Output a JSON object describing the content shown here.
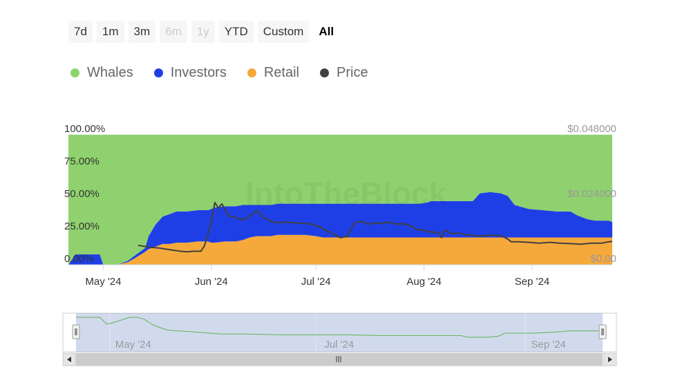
{
  "range_selector": {
    "buttons": [
      {
        "label": "7d",
        "state": "normal"
      },
      {
        "label": "1m",
        "state": "normal"
      },
      {
        "label": "3m",
        "state": "normal"
      },
      {
        "label": "6m",
        "state": "disabled"
      },
      {
        "label": "1y",
        "state": "disabled"
      },
      {
        "label": "YTD",
        "state": "normal"
      },
      {
        "label": "Custom",
        "state": "normal"
      },
      {
        "label": "All",
        "state": "active"
      }
    ]
  },
  "legend": [
    {
      "label": "Whales",
      "color": "#8fd16e"
    },
    {
      "label": "Investors",
      "color": "#1f3fe6"
    },
    {
      "label": "Retail",
      "color": "#f6a93b"
    },
    {
      "label": "Price",
      "color": "#404040"
    }
  ],
  "watermark": "IntoTheBlock",
  "navigator": {
    "scroll_thumb_icon": "grip-lines-icon"
  },
  "chart_data": {
    "type": "area",
    "stacking": "percent",
    "x_axis": {
      "type": "date",
      "ticks": [
        "May '24",
        "Jun '24",
        "Jul '24",
        "Aug '24",
        "Sep '24"
      ]
    },
    "y_left": {
      "range": [
        0,
        100
      ],
      "ticks": [
        "0.00%",
        "25.00%",
        "50.00%",
        "75.00%",
        "100.00%"
      ]
    },
    "y_right": {
      "range": [
        0,
        0.048
      ],
      "ticks": [
        "$0.00",
        "$0.024000",
        "$0.048000"
      ]
    },
    "grid": true,
    "legend_position": "top-left",
    "navigator_ticks": [
      "May '24",
      "Jul '24",
      "Sep '24"
    ],
    "x": [
      "2024-04-21",
      "2024-04-23",
      "2024-04-24",
      "2024-04-30",
      "2024-05-01",
      "2024-05-05",
      "2024-05-08",
      "2024-05-10",
      "2024-05-13",
      "2024-05-14",
      "2024-05-16",
      "2024-05-18",
      "2024-05-20",
      "2024-05-22",
      "2024-05-25",
      "2024-05-28",
      "2024-05-31",
      "2024-06-01",
      "2024-06-02",
      "2024-06-05",
      "2024-06-08",
      "2024-06-10",
      "2024-06-12",
      "2024-06-14",
      "2024-06-15",
      "2024-06-18",
      "2024-06-20",
      "2024-06-22",
      "2024-06-25",
      "2024-06-28",
      "2024-07-01",
      "2024-07-03",
      "2024-07-05",
      "2024-07-07",
      "2024-07-10",
      "2024-07-13",
      "2024-07-16",
      "2024-07-19",
      "2024-07-22",
      "2024-07-25",
      "2024-07-28",
      "2024-07-31",
      "2024-08-02",
      "2024-08-03",
      "2024-08-05",
      "2024-08-08",
      "2024-08-11",
      "2024-08-13",
      "2024-08-15",
      "2024-08-17",
      "2024-08-20",
      "2024-08-23",
      "2024-08-25",
      "2024-08-27",
      "2024-08-31",
      "2024-09-04",
      "2024-09-08",
      "2024-09-11",
      "2024-09-12",
      "2024-09-14",
      "2024-09-17",
      "2024-09-19",
      "2024-09-21",
      "2024-09-23",
      "2024-09-24"
    ],
    "series": [
      {
        "name": "Retail",
        "values": [
          0,
          0,
          0,
          0,
          0,
          0,
          2,
          5,
          10,
          12,
          14,
          16,
          16,
          17,
          17,
          18,
          18,
          17,
          17,
          18,
          18,
          19,
          21,
          22,
          22,
          22,
          23,
          23,
          23,
          23,
          22,
          21,
          21,
          21,
          21,
          21,
          21,
          21,
          21,
          21,
          21,
          21,
          21,
          21,
          21,
          21,
          21,
          21,
          21,
          21,
          21,
          21,
          21,
          21,
          21,
          21,
          21,
          21,
          21,
          21,
          21,
          21,
          21,
          21,
          21
        ]
      },
      {
        "name": "Investors",
        "values": [
          0,
          8,
          8,
          8,
          0,
          0,
          1,
          2,
          3,
          10,
          17,
          21,
          23,
          24,
          24,
          24,
          24,
          26,
          27,
          27,
          27,
          27,
          25,
          24,
          24,
          24,
          24,
          24,
          24,
          24,
          25,
          26,
          26,
          26,
          26,
          26,
          26,
          26,
          26,
          26,
          26,
          26,
          27,
          28,
          28,
          28,
          28,
          28,
          28,
          34,
          35,
          34,
          32,
          25,
          22,
          21,
          20,
          20,
          20,
          17,
          14,
          13,
          13,
          13,
          12
        ]
      },
      {
        "name": "Whales",
        "values": [
          100,
          92,
          92,
          92,
          100,
          100,
          97,
          93,
          87,
          78,
          69,
          63,
          61,
          59,
          59,
          58,
          58,
          57,
          56,
          55,
          55,
          54,
          54,
          54,
          54,
          54,
          53,
          53,
          53,
          53,
          53,
          53,
          53,
          53,
          53,
          53,
          53,
          53,
          53,
          53,
          53,
          53,
          52,
          51,
          51,
          51,
          51,
          51,
          51,
          45,
          44,
          45,
          47,
          54,
          57,
          58,
          59,
          59,
          59,
          62,
          65,
          66,
          66,
          66,
          67
        ]
      }
    ],
    "price_series": {
      "name": "Price",
      "x": [
        "2024-05-11",
        "2024-05-14",
        "2024-05-17",
        "2024-05-20",
        "2024-05-23",
        "2024-05-25",
        "2024-05-27",
        "2024-05-29",
        "2024-05-30",
        "2024-05-31",
        "2024-06-01",
        "2024-06-02",
        "2024-06-03",
        "2024-06-04",
        "2024-06-06",
        "2024-06-08",
        "2024-06-10",
        "2024-06-12",
        "2024-06-14",
        "2024-06-16",
        "2024-06-18",
        "2024-06-20",
        "2024-06-22",
        "2024-06-25",
        "2024-06-28",
        "2024-06-30",
        "2024-07-02",
        "2024-07-05",
        "2024-07-08",
        "2024-07-10",
        "2024-07-12",
        "2024-07-14",
        "2024-07-16",
        "2024-07-18",
        "2024-07-20",
        "2024-07-22",
        "2024-07-24",
        "2024-07-26",
        "2024-07-28",
        "2024-07-30",
        "2024-08-01",
        "2024-08-03",
        "2024-08-05",
        "2024-08-06",
        "2024-08-07",
        "2024-08-09",
        "2024-08-11",
        "2024-08-13",
        "2024-08-15",
        "2024-08-17",
        "2024-08-20",
        "2024-08-23",
        "2024-08-25",
        "2024-08-26",
        "2024-08-28",
        "2024-08-31",
        "2024-09-03",
        "2024-09-06",
        "2024-09-09",
        "2024-09-12",
        "2024-09-15",
        "2024-09-18",
        "2024-09-21",
        "2024-09-23",
        "2024-09-24"
      ],
      "values": [
        0.0072,
        0.0065,
        0.0062,
        0.0056,
        0.005,
        0.0048,
        0.005,
        0.005,
        0.007,
        0.011,
        0.016,
        0.023,
        0.021,
        0.0225,
        0.018,
        0.0175,
        0.0165,
        0.018,
        0.02,
        0.0175,
        0.016,
        0.0155,
        0.0158,
        0.0155,
        0.0152,
        0.015,
        0.014,
        0.012,
        0.01,
        0.0105,
        0.0155,
        0.016,
        0.015,
        0.0155,
        0.0152,
        0.0158,
        0.015,
        0.0152,
        0.0145,
        0.013,
        0.0128,
        0.012,
        0.012,
        0.01,
        0.0128,
        0.0115,
        0.0118,
        0.011,
        0.011,
        0.0105,
        0.011,
        0.0108,
        0.0095,
        0.0085,
        0.0085,
        0.0083,
        0.008,
        0.0083,
        0.008,
        0.0078,
        0.0076,
        0.008,
        0.008,
        0.0085,
        0.0086
      ]
    },
    "navigator_series": {
      "name": "Retail",
      "x": [
        "2024-04-21",
        "2024-04-28",
        "2024-04-30",
        "2024-05-01",
        "2024-05-07",
        "2024-05-09",
        "2024-05-11",
        "2024-05-14",
        "2024-05-18",
        "2024-05-21",
        "2024-05-25",
        "2024-05-31",
        "2024-06-03",
        "2024-06-10",
        "2024-06-20",
        "2024-07-01",
        "2024-07-10",
        "2024-07-20",
        "2024-08-01",
        "2024-08-13",
        "2024-08-15",
        "2024-08-21",
        "2024-08-24",
        "2024-08-26",
        "2024-09-03",
        "2024-09-12",
        "2024-09-14",
        "2024-09-24"
      ],
      "values": [
        0,
        0,
        8,
        8,
        0,
        0,
        2,
        10,
        16,
        17,
        18,
        20,
        21,
        21,
        22,
        22,
        22,
        23,
        23,
        23,
        25,
        25,
        24,
        20,
        20,
        18,
        17,
        17
      ]
    }
  }
}
